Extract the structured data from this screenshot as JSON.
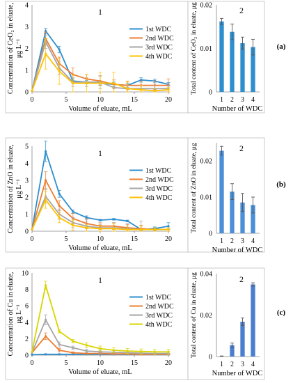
{
  "chart_data": [
    {
      "type": "line",
      "panel_number": "1",
      "xlabel": "Volume of eluate, mL",
      "ylabel_lines": [
        "Concentration of CeO₂ in eluate,",
        "μg L⁻¹"
      ],
      "xlim": [
        0,
        20
      ],
      "xticks": [
        0,
        5,
        10,
        15,
        20
      ],
      "ylim": [
        0,
        4
      ],
      "yticks": [
        0,
        1,
        2,
        3,
        4
      ],
      "legend": "right",
      "x": [
        0,
        2,
        4,
        6,
        8,
        10,
        12,
        14,
        16,
        18,
        20
      ],
      "series": [
        {
          "name": "1st WDC",
          "color": "#2e8fcf",
          "values": [
            0.05,
            2.8,
            1.95,
            0.5,
            0.45,
            0.4,
            0.35,
            0.3,
            0.55,
            0.5,
            0.35
          ],
          "err": [
            0,
            0.12,
            0.15,
            0.1,
            0.08,
            0.08,
            0.1,
            0.1,
            0.1,
            0.08,
            0.08
          ]
        },
        {
          "name": "2nd WDC",
          "color": "#ed7d31",
          "values": [
            0.05,
            2.45,
            1.3,
            0.8,
            0.6,
            0.5,
            0.35,
            0.3,
            0.3,
            0.3,
            0.3
          ],
          "err": [
            0,
            0.3,
            0.3,
            0.3,
            0.2,
            0.2,
            0.2,
            0.2,
            0.2,
            0.2,
            0.3
          ]
        },
        {
          "name": "3rd WDC",
          "color": "#a5a5a5",
          "values": [
            0.05,
            2.3,
            1.1,
            0.45,
            0.45,
            0.45,
            0.2,
            0.15,
            0.15,
            0.15,
            0.15
          ],
          "err": [
            0,
            0.3,
            0.3,
            0.2,
            0.2,
            0.3,
            0.2,
            0.15,
            0.15,
            0.15,
            0.15
          ]
        },
        {
          "name": "4th WDC",
          "color": "#ffc000",
          "values": [
            0.05,
            1.75,
            0.95,
            0.4,
            0.4,
            0.4,
            0.4,
            0.15,
            0.1,
            0.05,
            0.1
          ],
          "err": [
            0,
            0.7,
            0.6,
            0.4,
            0.4,
            0.5,
            0.5,
            0.3,
            0.2,
            0.1,
            0.1
          ]
        }
      ]
    },
    {
      "type": "bar",
      "panel_number": "2",
      "xlabel": "Number of WDC",
      "ylabel": "Total content of CeO₂ in eluate, μg",
      "categories": [
        "1",
        "2",
        "3",
        "4"
      ],
      "values": [
        0.0162,
        0.0138,
        0.0112,
        0.0103
      ],
      "err": [
        0.0007,
        0.0018,
        0.0014,
        0.0018
      ],
      "ylim": [
        0,
        0.02
      ],
      "yticks": [
        0,
        0.01,
        0.02
      ],
      "ytick_labels": [
        "0",
        "0.01",
        "0.02"
      ],
      "bar_color": "#2e8fcf",
      "panel_letter": "(a)"
    },
    {
      "type": "line",
      "panel_number": "1",
      "xlabel": "Volume of eluate, mL",
      "ylabel_lines": [
        "Concentration of  ZnO in eluate,",
        "μg L⁻¹"
      ],
      "xlim": [
        0,
        20
      ],
      "xticks": [
        0,
        5,
        10,
        15,
        20
      ],
      "ylim": [
        0,
        5
      ],
      "yticks": [
        0,
        1,
        2,
        3,
        4,
        5
      ],
      "legend": "right",
      "x": [
        0,
        2,
        4,
        6,
        8,
        10,
        12,
        14,
        16,
        18,
        20
      ],
      "series": [
        {
          "name": "1st WDC",
          "color": "#2e8fcf",
          "values": [
            0.1,
            4.7,
            2.2,
            1.15,
            0.8,
            0.65,
            0.7,
            0.6,
            0.1,
            0.15,
            0.3
          ],
          "err": [
            0,
            0.6,
            0.2,
            0.1,
            0.1,
            0.05,
            0.05,
            0.05,
            0.05,
            0.1,
            0.2
          ]
        },
        {
          "name": "2nd WDC",
          "color": "#ed7d31",
          "values": [
            0.1,
            3.0,
            1.5,
            0.75,
            0.45,
            0.3,
            0.3,
            0.2,
            0.15,
            0.1,
            0.1
          ],
          "err": [
            0,
            0.5,
            0.3,
            0.3,
            0.3,
            0.2,
            0.2,
            0.2,
            0.2,
            0.1,
            0.1
          ]
        },
        {
          "name": "3rd WDC",
          "color": "#a5a5a5",
          "values": [
            0.1,
            2.05,
            1.0,
            0.5,
            0.3,
            0.2,
            0.2,
            0.15,
            0.1,
            0.1,
            0.1
          ],
          "err": [
            0,
            0.4,
            0.3,
            0.3,
            0.3,
            0.2,
            0.3,
            0.3,
            0.5,
            0.1,
            0.1
          ]
        },
        {
          "name": "4th WDC",
          "color": "#ffc000",
          "values": [
            0.1,
            1.85,
            0.8,
            0.35,
            0.2,
            0.15,
            0.15,
            0.1,
            0.1,
            0.1,
            0.1
          ],
          "err": [
            0,
            0.5,
            0.3,
            0.3,
            0.2,
            0.2,
            0.3,
            0.2,
            0.2,
            0.1,
            0.1
          ]
        }
      ]
    },
    {
      "type": "bar",
      "panel_number": "2",
      "xlabel": "Number of WDC",
      "ylabel": "Total content of ZnO in eluate,  μg",
      "categories": [
        "1",
        "2",
        "3",
        "4"
      ],
      "values": [
        0.0228,
        0.0115,
        0.0085,
        0.0078
      ],
      "err": [
        0.0012,
        0.0022,
        0.0025,
        0.0022
      ],
      "ylim": [
        0,
        0.025
      ],
      "yticks": [
        0,
        0.01,
        0.02
      ],
      "ytick_labels": [
        "0",
        "0.01",
        "0.02"
      ],
      "bar_color": "#4a8fd8",
      "panel_letter": "(b)"
    },
    {
      "type": "line",
      "panel_number": "1",
      "xlabel": "Volume of eluate, mL",
      "ylabel_lines": [
        "Concentration of  Cu in eluate,",
        "μg L⁻¹"
      ],
      "xlim": [
        0,
        20
      ],
      "xticks": [
        0,
        5,
        10,
        15,
        20
      ],
      "ylim": [
        0,
        10
      ],
      "yticks": [
        0,
        2,
        4,
        6,
        8,
        10
      ],
      "legend": "right",
      "x": [
        0,
        2,
        4,
        6,
        8,
        10,
        12,
        14,
        16,
        18,
        20
      ],
      "series": [
        {
          "name": "1st WDC",
          "color": "#2e8fcf",
          "values": [
            0.05,
            0.1,
            0.1,
            0.1,
            0.1,
            0.1,
            0.1,
            0.1,
            0.1,
            0.1,
            0.1
          ],
          "err": [
            0,
            0.05,
            0.05,
            0.05,
            0.05,
            0.05,
            0.05,
            0.05,
            0.05,
            0.05,
            0.05
          ]
        },
        {
          "name": "2nd WDC",
          "color": "#ed7d31",
          "values": [
            0.3,
            2.3,
            0.6,
            0.3,
            0.2,
            0.2,
            0.15,
            0.15,
            0.1,
            0.1,
            0.1
          ],
          "err": [
            0,
            0.4,
            0.2,
            0.1,
            0.1,
            0.1,
            0.1,
            0.1,
            0.1,
            0.1,
            0.1
          ]
        },
        {
          "name": "3rd WDC",
          "color": "#a5a5a5",
          "values": [
            0.3,
            4.3,
            1.3,
            0.9,
            0.5,
            0.4,
            0.35,
            0.3,
            0.25,
            0.2,
            0.2
          ],
          "err": [
            0,
            0.6,
            0.3,
            0.2,
            0.2,
            0.2,
            0.2,
            0.2,
            0.2,
            0.2,
            0.2
          ]
        },
        {
          "name": "4th WDC",
          "color": "#d9d400",
          "values": [
            0.4,
            8.5,
            2.9,
            1.7,
            1.2,
            0.8,
            0.6,
            0.5,
            0.45,
            0.4,
            0.4
          ],
          "err": [
            0,
            0.5,
            0.2,
            0.2,
            0.3,
            0.3,
            0.3,
            0.3,
            0.3,
            0.3,
            0.3
          ]
        }
      ]
    },
    {
      "type": "bar",
      "panel_number": "2",
      "xlabel": "Number of WDC",
      "ylabel": "Total content of Cu in eluate,  μg",
      "categories": [
        "1",
        "2",
        "3",
        "4"
      ],
      "values": [
        0.0002,
        0.0055,
        0.0168,
        0.0348
      ],
      "err": [
        0.0001,
        0.001,
        0.0018,
        0.0008
      ],
      "ylim": [
        0,
        0.04
      ],
      "yticks": [
        0,
        0.02,
        0.04
      ],
      "ytick_labels": [
        "0",
        "0.02",
        "0.04"
      ],
      "bar_color": "#4a7fd0",
      "panel_letter": "(c)"
    }
  ]
}
